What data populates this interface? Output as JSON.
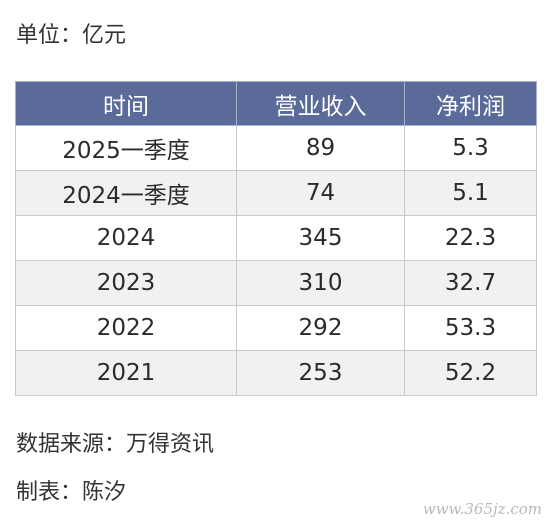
{
  "unit_label": "单位：亿元",
  "table": {
    "headers": [
      "时间",
      "营业收入",
      "净利润"
    ],
    "rows": [
      [
        "2025一季度",
        "89",
        "5.3"
      ],
      [
        "2024一季度",
        "74",
        "5.1"
      ],
      [
        "2024",
        "345",
        "22.3"
      ],
      [
        "2023",
        "310",
        "32.7"
      ],
      [
        "2022",
        "292",
        "53.3"
      ],
      [
        "2021",
        "253",
        "52.2"
      ]
    ]
  },
  "source_label": "数据来源：万得资讯",
  "maker_label": "制表：陈汐",
  "watermark": "www.365jz.com",
  "colors": {
    "header_bg": "#5b6b99",
    "header_text": "#ffffff",
    "alt_row_bg": "#f1f1f1",
    "border": "#c9c9c9"
  }
}
